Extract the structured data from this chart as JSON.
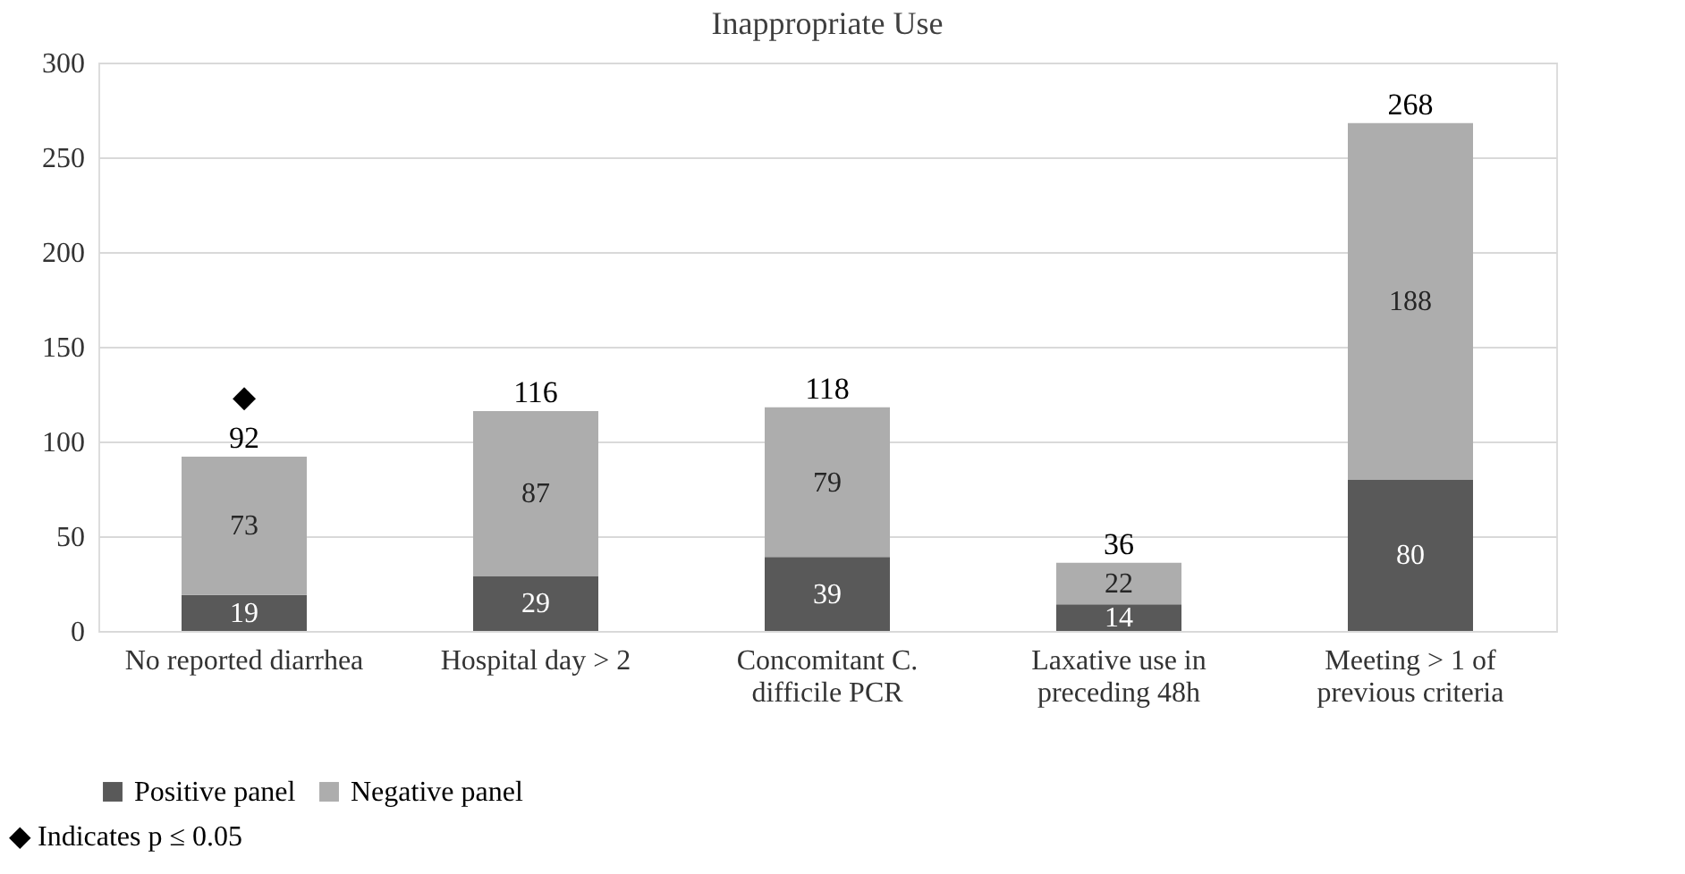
{
  "chart_data": {
    "type": "bar",
    "title": "Inappropriate Use",
    "stacked": true,
    "categories": [
      "No reported diarrhea",
      "Hospital day > 2",
      "Concomitant C. difficile PCR",
      "Laxative use in preceding 48h",
      "Meeting > 1 of previous criteria"
    ],
    "series": [
      {
        "name": "Positive panel",
        "color": "#595959",
        "values": [
          19,
          29,
          39,
          14,
          80
        ]
      },
      {
        "name": "Negative panel",
        "color": "#adadad",
        "values": [
          73,
          87,
          79,
          22,
          188
        ]
      }
    ],
    "totals": [
      "92",
      "116",
      "118",
      "36",
      "268"
    ],
    "data_labels": true,
    "ylim": [
      0,
      300
    ],
    "yticks": [
      0,
      50,
      100,
      150,
      200,
      250,
      300
    ],
    "grid": "y",
    "legend": "bottom",
    "annotations": [
      {
        "text": "◆",
        "x": "No reported diarrhea",
        "y": 92
      },
      "◆ Indicates p ≤ 0.05"
    ]
  }
}
